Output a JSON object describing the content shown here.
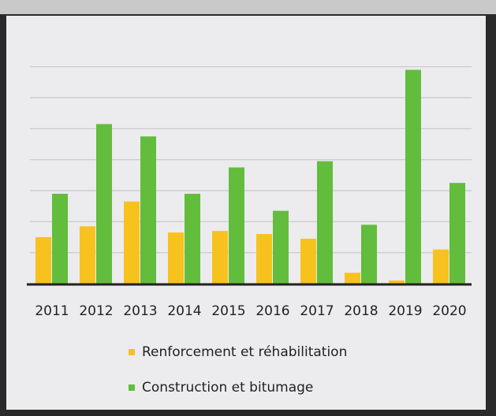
{
  "chart_data": {
    "type": "bar",
    "categories": [
      "2011",
      "2012",
      "2013",
      "2014",
      "2015",
      "2016",
      "2017",
      "2018",
      "2019",
      "2020"
    ],
    "series": [
      {
        "name": "Renforcement et réhabilitation",
        "color": "#f7c21e",
        "values": [
          1.5,
          1.85,
          2.65,
          1.65,
          1.7,
          1.6,
          1.45,
          0.35,
          0.1,
          1.1
        ]
      },
      {
        "name": "Construction et bitumage",
        "color": "#62bd3c",
        "values": [
          2.9,
          5.15,
          4.75,
          2.9,
          3.75,
          2.35,
          3.95,
          1.9,
          6.9,
          3.25
        ]
      }
    ],
    "ylim": [
      0,
      7.5
    ],
    "yticks": [
      0,
      1,
      2,
      3,
      4,
      5,
      6,
      7
    ],
    "grid": true
  }
}
